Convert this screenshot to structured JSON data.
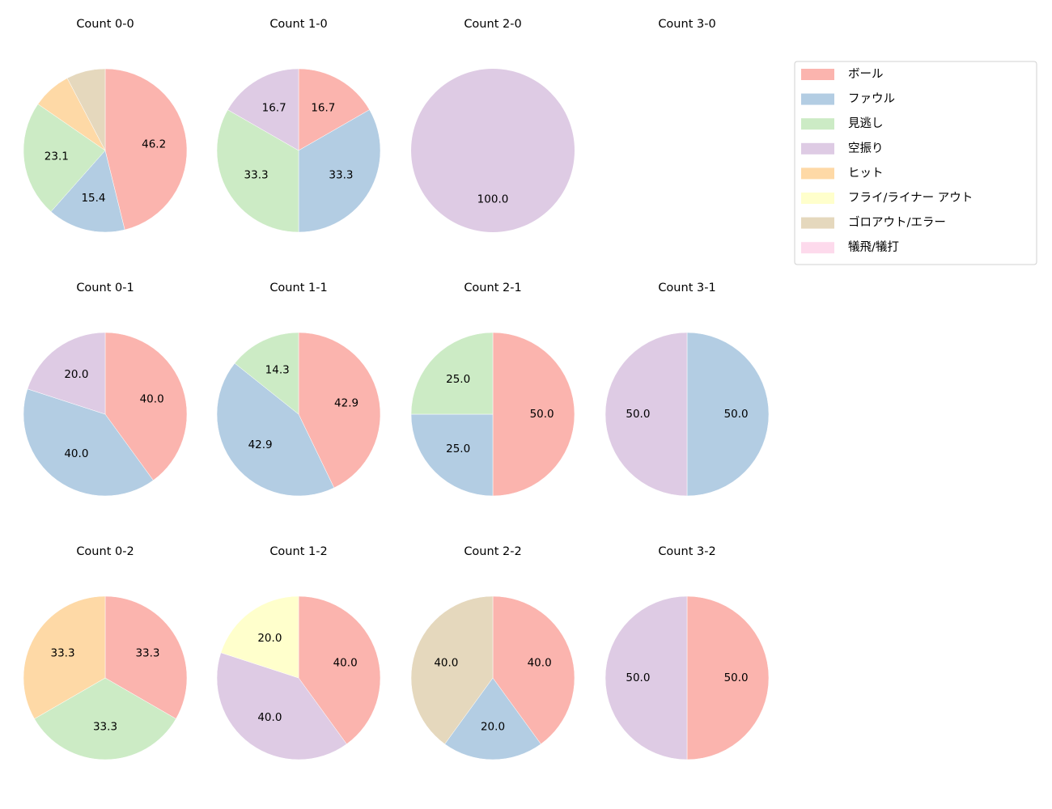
{
  "chart_data": {
    "type": "pie",
    "categories": [
      "ボール",
      "ファウル",
      "見逃し",
      "空振り",
      "ヒット",
      "フライ/ライナー アウト",
      "ゴロアウト/エラー",
      "犠飛/犠打"
    ],
    "colors": [
      "#fbb4ae",
      "#b3cde3",
      "#ccebc5",
      "#decbe4",
      "#fed9a6",
      "#ffffcc",
      "#e5d8bd",
      "#fddaec"
    ],
    "start_angle": 90,
    "direction": "clockwise",
    "legend_position": "top-right",
    "pies": [
      {
        "title": "Count 0-0",
        "values": [
          46.2,
          15.4,
          23.1,
          0,
          7.7,
          0,
          7.7,
          0
        ],
        "labels": [
          "46.2",
          "15.4",
          "23.1",
          "",
          "",
          "",
          "",
          ""
        ]
      },
      {
        "title": "Count 1-0",
        "values": [
          16.7,
          33.3,
          33.3,
          16.7,
          0,
          0,
          0,
          0
        ],
        "labels": [
          "16.7",
          "33.3",
          "33.3",
          "16.7",
          "",
          "",
          "",
          ""
        ]
      },
      {
        "title": "Count 2-0",
        "values": [
          0,
          0,
          0,
          100,
          0,
          0,
          0,
          0
        ],
        "labels": [
          "",
          "",
          "",
          "100.0",
          "",
          "",
          "",
          ""
        ]
      },
      {
        "title": "Count 3-0",
        "values": [],
        "labels": []
      },
      {
        "title": "Count 0-1",
        "values": [
          40,
          40,
          0,
          20,
          0,
          0,
          0,
          0
        ],
        "labels": [
          "40.0",
          "40.0",
          "",
          "20.0",
          "",
          "",
          "",
          ""
        ]
      },
      {
        "title": "Count 1-1",
        "values": [
          42.9,
          42.9,
          14.3,
          0,
          0,
          0,
          0,
          0
        ],
        "labels": [
          "42.9",
          "42.9",
          "14.3",
          "",
          "",
          "",
          "",
          ""
        ]
      },
      {
        "title": "Count 2-1",
        "values": [
          50,
          25,
          25,
          0,
          0,
          0,
          0,
          0
        ],
        "labels": [
          "50.0",
          "25.0",
          "25.0",
          "",
          "",
          "",
          "",
          ""
        ]
      },
      {
        "title": "Count 3-1",
        "values": [
          0,
          50,
          0,
          50,
          0,
          0,
          0,
          0
        ],
        "labels": [
          "",
          "50.0",
          "",
          "50.0",
          "",
          "",
          "",
          ""
        ]
      },
      {
        "title": "Count 0-2",
        "values": [
          33.3,
          0,
          33.3,
          0,
          33.3,
          0,
          0,
          0
        ],
        "labels": [
          "33.3",
          "",
          "33.3",
          "",
          "33.3",
          "",
          "",
          ""
        ]
      },
      {
        "title": "Count 1-2",
        "values": [
          40,
          0,
          0,
          40,
          0,
          20,
          0,
          0
        ],
        "labels": [
          "40.0",
          "",
          "",
          "40.0",
          "",
          "20.0",
          "",
          ""
        ]
      },
      {
        "title": "Count 2-2",
        "values": [
          40,
          20,
          0,
          0,
          0,
          0,
          40,
          0
        ],
        "labels": [
          "40.0",
          "20.0",
          "",
          "",
          "",
          "",
          "40.0",
          ""
        ]
      },
      {
        "title": "Count 3-2",
        "values": [
          50,
          0,
          0,
          50,
          0,
          0,
          0,
          0
        ],
        "labels": [
          "50.0",
          "",
          "",
          "50.0",
          "",
          "",
          "",
          ""
        ]
      }
    ]
  }
}
